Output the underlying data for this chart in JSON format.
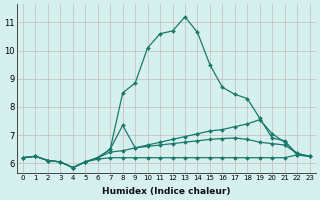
{
  "xlabel": "Humidex (Indice chaleur)",
  "bg_color": "#d6f0f0",
  "grid_color": "#c8b8b8",
  "line_color": "#1a7a6a",
  "x_ticks": [
    0,
    1,
    2,
    3,
    4,
    5,
    6,
    7,
    8,
    9,
    10,
    11,
    12,
    13,
    14,
    15,
    16,
    17,
    18,
    19,
    20,
    21,
    22,
    23
  ],
  "y_ticks": [
    6,
    7,
    8,
    9,
    10,
    11
  ],
  "xlim": [
    -0.5,
    23.5
  ],
  "ylim": [
    5.65,
    11.65
  ],
  "series": [
    [
      6.2,
      6.25,
      6.1,
      6.05,
      5.85,
      6.05,
      6.2,
      6.5,
      8.5,
      8.85,
      10.1,
      10.6,
      10.7,
      11.2,
      10.65,
      9.5,
      8.7,
      8.45,
      8.3,
      7.6,
      6.9,
      6.8,
      6.3,
      6.25
    ],
    [
      6.2,
      6.25,
      6.1,
      6.05,
      5.85,
      6.05,
      6.2,
      6.5,
      7.35,
      6.55,
      6.65,
      6.75,
      6.85,
      6.95,
      7.05,
      7.15,
      7.2,
      7.3,
      7.4,
      7.55,
      7.05,
      6.75,
      6.35,
      6.25
    ],
    [
      6.2,
      6.25,
      6.1,
      6.05,
      5.85,
      6.05,
      6.2,
      6.4,
      6.45,
      6.55,
      6.6,
      6.65,
      6.7,
      6.75,
      6.8,
      6.85,
      6.88,
      6.9,
      6.85,
      6.75,
      6.7,
      6.65,
      6.35,
      6.25
    ],
    [
      6.2,
      6.25,
      6.1,
      6.05,
      5.85,
      6.05,
      6.15,
      6.2,
      6.2,
      6.2,
      6.2,
      6.2,
      6.2,
      6.2,
      6.2,
      6.2,
      6.2,
      6.2,
      6.2,
      6.2,
      6.2,
      6.2,
      6.3,
      6.25
    ]
  ]
}
